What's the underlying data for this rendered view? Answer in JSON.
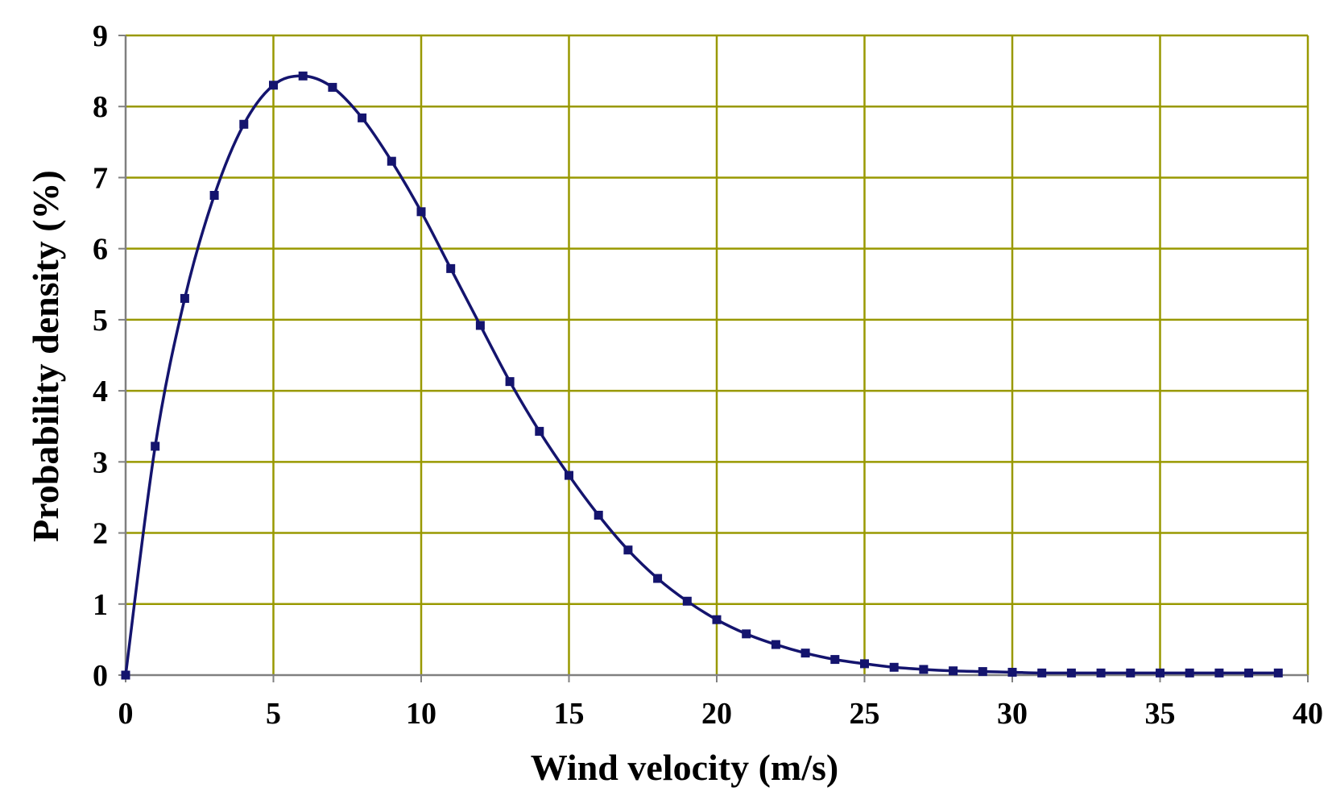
{
  "chart_data": {
    "type": "line",
    "title": "",
    "xlabel": "Wind velocity (m/s)",
    "ylabel": "Probability density (%)",
    "xlim": [
      0,
      40
    ],
    "ylim": [
      0,
      9
    ],
    "x_ticks": [
      "0",
      "5",
      "10",
      "15",
      "20",
      "25",
      "30",
      "35",
      "40"
    ],
    "y_ticks": [
      "0",
      "1",
      "2",
      "3",
      "4",
      "5",
      "6",
      "7",
      "8",
      "9"
    ],
    "grid": true,
    "legend": "none",
    "colors": {
      "series": "#14146e",
      "grid": "#999900",
      "axis": "#808080"
    },
    "series": [
      {
        "x": [
          0,
          1,
          2,
          3,
          4,
          5,
          6,
          7,
          8,
          9,
          10,
          11,
          12,
          13,
          14,
          15,
          16,
          17,
          18,
          19,
          20,
          21,
          22,
          23,
          24,
          25,
          26,
          27,
          28,
          29,
          30,
          31,
          32,
          33,
          34,
          35,
          36,
          37,
          38,
          39
        ],
        "values": [
          0,
          3.22,
          5.3,
          6.75,
          7.75,
          8.3,
          8.43,
          8.27,
          7.84,
          7.23,
          6.52,
          5.72,
          4.92,
          4.13,
          3.43,
          2.81,
          2.25,
          1.76,
          1.36,
          1.04,
          0.78,
          0.58,
          0.43,
          0.31,
          0.22,
          0.16,
          0.11,
          0.08,
          0.06,
          0.05,
          0.04,
          0.03,
          0.03,
          0.03,
          0.03,
          0.03,
          0.03,
          0.03,
          0.03,
          0.03
        ]
      }
    ]
  }
}
